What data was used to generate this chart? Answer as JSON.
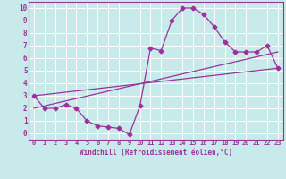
{
  "background_color": "#c8eaea",
  "grid_color": "#ffffff",
  "line_color": "#993399",
  "xlabel": "Windchill (Refroidissement éolien,°C)",
  "xlim": [
    -0.5,
    23.5
  ],
  "ylim": [
    -0.5,
    10.5
  ],
  "xticks": [
    0,
    1,
    2,
    3,
    4,
    5,
    6,
    7,
    8,
    9,
    10,
    11,
    12,
    13,
    14,
    15,
    16,
    17,
    18,
    19,
    20,
    21,
    22,
    23
  ],
  "yticks": [
    0,
    1,
    2,
    3,
    4,
    5,
    6,
    7,
    8,
    9,
    10
  ],
  "curve1_x": [
    0,
    1,
    2,
    3,
    4,
    5,
    6,
    7,
    8,
    9,
    10,
    11,
    12,
    13,
    14,
    15,
    16,
    17,
    18,
    19,
    20,
    21,
    22,
    23
  ],
  "curve1_y": [
    3,
    2,
    2,
    2.3,
    2,
    1.0,
    0.6,
    0.5,
    0.4,
    -0.1,
    2.2,
    6.8,
    6.6,
    9.0,
    10.0,
    10.0,
    9.5,
    8.5,
    7.3,
    6.5,
    6.5,
    6.5,
    7.0,
    5.2
  ],
  "line1_x": [
    0,
    23
  ],
  "line1_y": [
    3.0,
    5.2
  ],
  "line2_x": [
    0,
    23
  ],
  "line2_y": [
    2.0,
    6.5
  ],
  "markersize": 2.5,
  "linewidth": 0.9
}
